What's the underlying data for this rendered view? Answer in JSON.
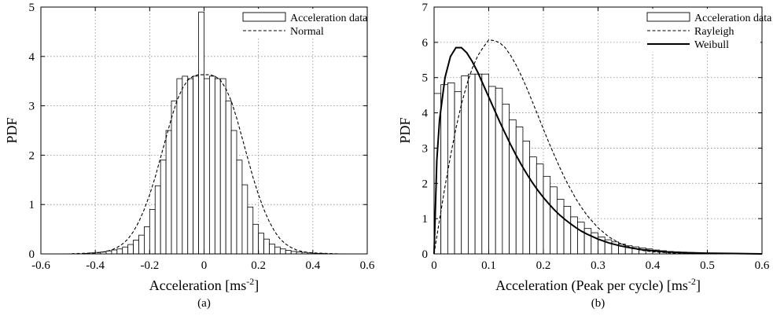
{
  "chart_data": [
    {
      "type": "bar",
      "caption": "(a)",
      "xlabel": "Acceleration [ms",
      "xlabel_sup": "-2",
      "xlabel_tail": "]",
      "ylabel": "PDF",
      "xlim": [
        -0.6,
        0.6
      ],
      "ylim": [
        0,
        5
      ],
      "xticks": [
        "-0.6",
        "-0.4",
        "-0.2",
        "0",
        "0.2",
        "0.4",
        "0.6"
      ],
      "yticks": [
        "0",
        "1",
        "2",
        "3",
        "4",
        "5"
      ],
      "grid": true,
      "legend_position": "top-right",
      "bin_width": 0.02,
      "histogram": {
        "name": "Acceleration data",
        "x": [
          -0.43,
          -0.41,
          -0.39,
          -0.37,
          -0.35,
          -0.33,
          -0.31,
          -0.29,
          -0.27,
          -0.25,
          -0.23,
          -0.21,
          -0.19,
          -0.17,
          -0.15,
          -0.13,
          -0.11,
          -0.09,
          -0.07,
          -0.05,
          -0.03,
          -0.01,
          0.01,
          0.03,
          0.05,
          0.07,
          0.09,
          0.11,
          0.13,
          0.15,
          0.17,
          0.19,
          0.21,
          0.23,
          0.25,
          0.27,
          0.29,
          0.31,
          0.33,
          0.35,
          0.37,
          0.39,
          0.41,
          0.43
        ],
        "y": [
          0.01,
          0.02,
          0.03,
          0.04,
          0.06,
          0.08,
          0.1,
          0.14,
          0.19,
          0.28,
          0.38,
          0.55,
          0.9,
          1.38,
          1.9,
          2.5,
          3.1,
          3.55,
          3.6,
          3.55,
          3.6,
          4.9,
          3.55,
          3.6,
          3.55,
          3.55,
          3.1,
          2.5,
          1.9,
          1.4,
          0.95,
          0.6,
          0.42,
          0.3,
          0.2,
          0.14,
          0.1,
          0.07,
          0.05,
          0.04,
          0.03,
          0.02,
          0.01,
          0.01
        ]
      },
      "series": [
        {
          "name": "Normal",
          "style": "dashed",
          "x": [
            -0.6,
            -0.55,
            -0.5,
            -0.45,
            -0.4,
            -0.38,
            -0.36,
            -0.34,
            -0.32,
            -0.3,
            -0.28,
            -0.26,
            -0.24,
            -0.22,
            -0.2,
            -0.18,
            -0.16,
            -0.14,
            -0.12,
            -0.1,
            -0.08,
            -0.06,
            -0.04,
            -0.02,
            0,
            0.02,
            0.04,
            0.06,
            0.08,
            0.1,
            0.12,
            0.14,
            0.16,
            0.18,
            0.2,
            0.22,
            0.24,
            0.26,
            0.28,
            0.3,
            0.32,
            0.34,
            0.36,
            0.38,
            0.4,
            0.45,
            0.5,
            0.55,
            0.6
          ],
          "y": [
            0,
            0,
            0,
            0.01,
            0.02,
            0.03,
            0.05,
            0.08,
            0.13,
            0.2,
            0.3,
            0.45,
            0.65,
            0.9,
            1.2,
            1.55,
            1.95,
            2.35,
            2.75,
            3.1,
            3.35,
            3.52,
            3.6,
            3.63,
            3.63,
            3.63,
            3.6,
            3.52,
            3.35,
            3.1,
            2.75,
            2.35,
            1.95,
            1.55,
            1.2,
            0.9,
            0.65,
            0.45,
            0.3,
            0.2,
            0.13,
            0.08,
            0.05,
            0.03,
            0.02,
            0.01,
            0,
            0,
            0
          ]
        }
      ]
    },
    {
      "type": "bar",
      "caption": "(b)",
      "xlabel": "Acceleration (Peak per cycle) [ms",
      "xlabel_sup": "-2",
      "xlabel_tail": "]",
      "ylabel": "PDF",
      "xlim": [
        0,
        0.6
      ],
      "ylim": [
        0,
        7
      ],
      "xticks": [
        "0",
        "0.1",
        "0.2",
        "0.3",
        "0.4",
        "0.5",
        "0.6"
      ],
      "yticks": [
        "0",
        "1",
        "2",
        "3",
        "4",
        "5",
        "6",
        "7"
      ],
      "grid": true,
      "legend_position": "top-right",
      "bin_width": 0.0125,
      "histogram": {
        "name": "Acceleration data",
        "x": [
          0.00625,
          0.01875,
          0.03125,
          0.04375,
          0.05625,
          0.06875,
          0.08125,
          0.09375,
          0.10625,
          0.11875,
          0.13125,
          0.14375,
          0.15625,
          0.16875,
          0.18125,
          0.19375,
          0.20625,
          0.21875,
          0.23125,
          0.24375,
          0.25625,
          0.26875,
          0.28125,
          0.29375,
          0.30625,
          0.31875,
          0.33125,
          0.34375,
          0.35625,
          0.36875,
          0.38125,
          0.39375,
          0.40625,
          0.41875,
          0.43125,
          0.44375,
          0.45625,
          0.46875,
          0.48125,
          0.49375
        ],
        "y": [
          4.55,
          4.8,
          4.85,
          4.6,
          5.05,
          5.1,
          5.1,
          5.1,
          4.75,
          4.7,
          4.25,
          3.8,
          3.6,
          3.2,
          2.75,
          2.55,
          2.2,
          1.9,
          1.55,
          1.35,
          1.05,
          0.9,
          0.72,
          0.6,
          0.48,
          0.4,
          0.34,
          0.28,
          0.23,
          0.2,
          0.17,
          0.14,
          0.11,
          0.09,
          0.07,
          0.06,
          0.05,
          0.04,
          0.03,
          0.02
        ]
      },
      "series": [
        {
          "name": "Rayleigh",
          "style": "dashed",
          "x": [
            0,
            0.01,
            0.02,
            0.03,
            0.04,
            0.05,
            0.06,
            0.07,
            0.08,
            0.09,
            0.1,
            0.11,
            0.12,
            0.13,
            0.14,
            0.15,
            0.16,
            0.17,
            0.18,
            0.19,
            0.2,
            0.21,
            0.22,
            0.23,
            0.24,
            0.25,
            0.26,
            0.27,
            0.28,
            0.3,
            0.32,
            0.34,
            0.36,
            0.38,
            0.4,
            0.45,
            0.5,
            0.55,
            0.6
          ],
          "y": [
            0,
            0.97,
            1.91,
            2.77,
            3.56,
            4.24,
            4.81,
            5.27,
            5.62,
            5.86,
            6.07,
            6.05,
            5.99,
            5.85,
            5.63,
            5.36,
            5.04,
            4.69,
            4.31,
            3.93,
            3.54,
            3.16,
            2.8,
            2.45,
            2.12,
            1.83,
            1.55,
            1.31,
            1.09,
            0.74,
            0.48,
            0.3,
            0.18,
            0.1,
            0.06,
            0.01,
            0,
            0,
            0
          ]
        },
        {
          "name": "Weibull",
          "style": "solid",
          "x": [
            0,
            0.005,
            0.01,
            0.02,
            0.03,
            0.04,
            0.05,
            0.06,
            0.07,
            0.08,
            0.09,
            0.1,
            0.11,
            0.12,
            0.13,
            0.14,
            0.15,
            0.16,
            0.17,
            0.18,
            0.19,
            0.2,
            0.21,
            0.22,
            0.23,
            0.24,
            0.25,
            0.26,
            0.27,
            0.28,
            0.3,
            0.32,
            0.34,
            0.36,
            0.38,
            0.4,
            0.42,
            0.45,
            0.5,
            0.55,
            0.6
          ],
          "y": [
            0,
            2.65,
            3.8,
            5.0,
            5.6,
            5.85,
            5.85,
            5.7,
            5.45,
            5.15,
            4.8,
            4.45,
            4.1,
            3.75,
            3.42,
            3.1,
            2.8,
            2.52,
            2.26,
            2.02,
            1.8,
            1.6,
            1.42,
            1.25,
            1.1,
            0.97,
            0.85,
            0.74,
            0.64,
            0.56,
            0.42,
            0.31,
            0.23,
            0.17,
            0.12,
            0.09,
            0.06,
            0.04,
            0.02,
            0.01,
            0
          ]
        }
      ]
    }
  ]
}
